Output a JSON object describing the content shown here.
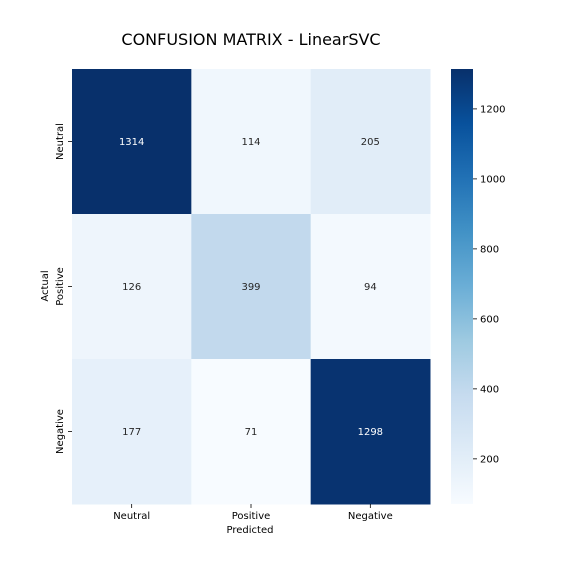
{
  "chart_data": {
    "type": "heatmap",
    "title": "CONFUSION MATRIX - LinearSVC",
    "xlabel": "Predicted",
    "ylabel": "Actual",
    "x_categories": [
      "Neutral",
      "Positive",
      "Negative"
    ],
    "y_categories": [
      "Neutral",
      "Positive",
      "Negative"
    ],
    "values": [
      [
        1314,
        114,
        205
      ],
      [
        126,
        399,
        94
      ],
      [
        177,
        71,
        1298
      ]
    ],
    "colormap": "Blues",
    "colorbar": {
      "min": 71,
      "max": 1314,
      "ticks": [
        200,
        400,
        600,
        800,
        1000,
        1200
      ]
    }
  }
}
